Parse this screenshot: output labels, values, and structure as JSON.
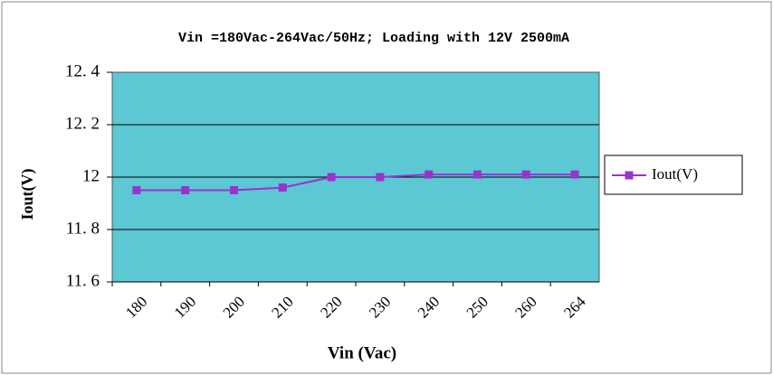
{
  "chart_data": {
    "type": "line",
    "title": "Vin =180Vac-264Vac/50Hz; Loading with  12V  2500mA",
    "x_label": "Vin (Vac)",
    "y_label": "Iout(V)",
    "categories": [
      "180",
      "190",
      "200",
      "210",
      "220",
      "230",
      "240",
      "250",
      "260",
      "264"
    ],
    "series": [
      {
        "name": "Iout(V)",
        "color": "#9933cc",
        "values": [
          11.95,
          11.95,
          11.95,
          11.96,
          12.0,
          12.0,
          12.01,
          12.01,
          12.01,
          12.01
        ]
      }
    ],
    "ylim": [
      11.6,
      12.4
    ],
    "yticks": [
      {
        "value": 11.6,
        "label": "11. 6"
      },
      {
        "value": 11.8,
        "label": "11. 8"
      },
      12,
      {
        "value": 12.2,
        "label": "12. 2"
      },
      {
        "value": 12.4,
        "label": "12. 4"
      }
    ],
    "grid": true,
    "legend": "right",
    "plot_background": "#5bc8d4"
  }
}
